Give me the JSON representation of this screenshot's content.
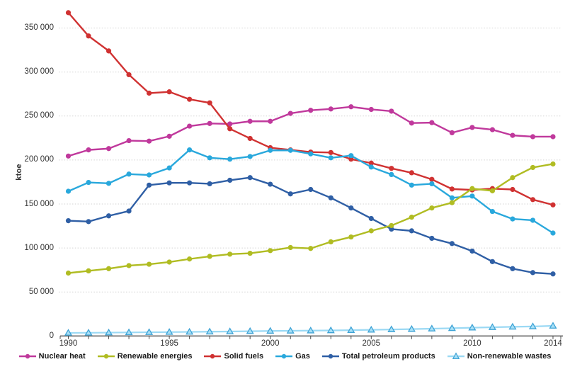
{
  "y_axis": {
    "title": "ktoe",
    "tick_labels": [
      "0",
      "50 000",
      "100 000",
      "150 000",
      "200 000",
      "250 000",
      "300 000",
      "350 000"
    ]
  },
  "x_axis": {
    "tick_labels": [
      "1990",
      "1995",
      "2000",
      "2005",
      "2010",
      "2014"
    ]
  },
  "chart_data": {
    "type": "line",
    "title": "",
    "xlabel": "",
    "ylabel": "ktoe",
    "ylim": [
      0,
      370000
    ],
    "y_gridline_step": 50000,
    "y_gridline_max": 350000,
    "grid": true,
    "legend_position": "bottom",
    "x": [
      1990,
      1991,
      1992,
      1993,
      1994,
      1995,
      1996,
      1997,
      1998,
      1999,
      2000,
      2001,
      2002,
      2003,
      2004,
      2005,
      2006,
      2007,
      2008,
      2009,
      2010,
      2011,
      2012,
      2013,
      2014
    ],
    "x_labeled_ticks": [
      1990,
      1995,
      2000,
      2005,
      2010,
      2014
    ],
    "series": [
      {
        "name": "Nuclear heat",
        "color": "#c0399c",
        "marker": "circle",
        "values": [
          204500,
          211500,
          213000,
          222000,
          221500,
          227000,
          238500,
          241500,
          241000,
          244000,
          244000,
          253000,
          256500,
          258000,
          260500,
          257500,
          255500,
          242000,
          242500,
          231000,
          237000,
          234500,
          228000,
          226500,
          226500
        ]
      },
      {
        "name": "Renewable energies",
        "color": "#b0bc22",
        "marker": "circle",
        "values": [
          71500,
          74000,
          76500,
          80000,
          81500,
          84000,
          87500,
          90500,
          93000,
          94000,
          97000,
          100500,
          99500,
          107000,
          112500,
          119500,
          125500,
          135000,
          145500,
          151500,
          167500,
          165000,
          180000,
          191500,
          195500
        ]
      },
      {
        "name": "Solid fuels",
        "color": "#d03232",
        "marker": "circle",
        "values": [
          367500,
          341000,
          324000,
          297000,
          276000,
          277500,
          269000,
          265000,
          235500,
          224500,
          214000,
          211500,
          209000,
          208500,
          201000,
          196500,
          190500,
          185500,
          178000,
          167000,
          166000,
          167500,
          166500,
          155000,
          149000
        ]
      },
      {
        "name": "Gas",
        "color": "#29a8dc",
        "marker": "circle",
        "values": [
          164500,
          174500,
          173500,
          184000,
          183000,
          191000,
          211500,
          202500,
          201000,
          204000,
          211000,
          211000,
          207000,
          202500,
          205000,
          192000,
          183500,
          171500,
          173000,
          157000,
          159000,
          141500,
          133000,
          131500,
          117000
        ]
      },
      {
        "name": "Total petroleum products",
        "color": "#2f5fa5",
        "marker": "circle",
        "values": [
          131000,
          130000,
          136500,
          142000,
          171500,
          174000,
          174000,
          173000,
          177000,
          180000,
          172500,
          161500,
          166500,
          157000,
          145500,
          133500,
          121500,
          119500,
          111000,
          105000,
          96500,
          84500,
          76500,
          72000,
          70500
        ]
      },
      {
        "name": "Non-renewable wastes",
        "color": "#9bd9f4",
        "marker": "triangle",
        "marker_fill": "#a9e0f6",
        "marker_stroke": "#3fa3d6",
        "values": [
          3500,
          3600,
          3800,
          4000,
          4200,
          4400,
          4600,
          4900,
          5100,
          5400,
          5700,
          5900,
          6100,
          6300,
          6600,
          7000,
          7400,
          7800,
          8300,
          8800,
          9400,
          9900,
          10400,
          10800,
          11500
        ]
      }
    ],
    "colors": {
      "gridline": "#d3d3d3",
      "axis": "#4d4d4d",
      "tick_text": "#333333"
    }
  }
}
